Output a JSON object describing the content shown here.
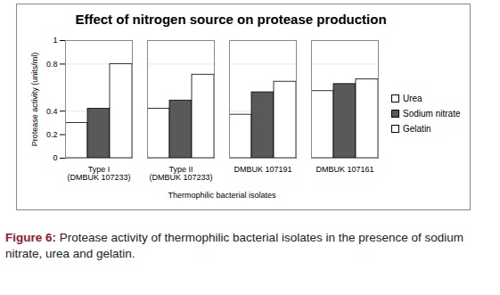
{
  "chart_data": {
    "type": "bar",
    "title": "Effect of nitrogen source on protease production",
    "x_label": "Thermophilic bacterial isolates",
    "y_label": "Protease activity (units/ml)",
    "categories": [
      "Type I (DMBUK 107233)",
      "Type II (DMBUK 107233)",
      "DMBUK 107191",
      "DMBUK 107161"
    ],
    "series": [
      {
        "name": "Urea",
        "color": "#ffffff",
        "values": [
          0.3,
          0.42,
          0.37,
          0.57
        ]
      },
      {
        "name": "Sodium nitrate",
        "color": "#595959",
        "values": [
          0.42,
          0.49,
          0.56,
          0.63
        ]
      },
      {
        "name": "Gelatin",
        "color": "#ffffff",
        "values": [
          0.8,
          0.71,
          0.65,
          0.67
        ]
      }
    ],
    "ylim": [
      0,
      1
    ],
    "yticks": [
      0,
      0.2,
      0.4,
      0.8,
      1
    ],
    "grid": true,
    "legend": "right",
    "caption": {
      "label": "Figure 6:",
      "text": "Protease activity of thermophilic bacterial isolates in the presence of sodium nitrate, urea and gelatin."
    }
  }
}
